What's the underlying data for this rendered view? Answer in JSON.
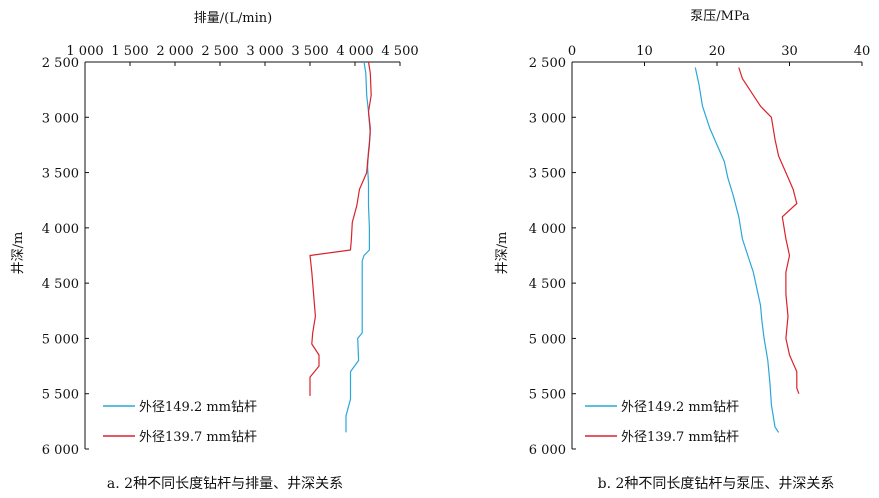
{
  "chart_data": [
    {
      "type": "line",
      "caption": "a. 2种不同长度钻杆与排量、井深关系",
      "xlabel": "排量/(L/min)",
      "ylabel": "井深/m",
      "x_axis_position": "top",
      "y_inverted": true,
      "xlim": [
        1000,
        4500
      ],
      "ylim": [
        2500,
        6000
      ],
      "xticks": [
        1000,
        1500,
        2000,
        2500,
        3000,
        3500,
        4000,
        4500
      ],
      "xtick_labels": [
        "1 000",
        "1 500",
        "2 000",
        "2 500",
        "3 000",
        "3 500",
        "4 000",
        "4 500"
      ],
      "yticks": [
        2500,
        3000,
        3500,
        4000,
        4500,
        5000,
        5500,
        6000
      ],
      "ytick_labels": [
        "2 500",
        "3 000",
        "3 500",
        "4 000",
        "4 500",
        "5 000",
        "5 500",
        "6 000"
      ],
      "legend_position": "bottom-left",
      "series": [
        {
          "name": "外径149.2 mm钻杆",
          "color": "#2aa7d8",
          "points": [
            [
              4100,
              2500
            ],
            [
              4120,
              2600
            ],
            [
              4130,
              2800
            ],
            [
              4150,
              2950
            ],
            [
              4160,
              3050
            ],
            [
              4170,
              3150
            ],
            [
              4150,
              3300
            ],
            [
              4140,
              3450
            ],
            [
              4150,
              3600
            ],
            [
              4150,
              3800
            ],
            [
              4160,
              4000
            ],
            [
              4160,
              4200
            ],
            [
              4100,
              4250
            ],
            [
              4080,
              4300
            ],
            [
              4080,
              4600
            ],
            [
              4080,
              4850
            ],
            [
              4080,
              4950
            ],
            [
              4030,
              5000
            ],
            [
              4040,
              5200
            ],
            [
              3950,
              5300
            ],
            [
              3950,
              5450
            ],
            [
              3950,
              5550
            ],
            [
              3900,
              5700
            ],
            [
              3900,
              5850
            ]
          ]
        },
        {
          "name": "外径139.7 mm钻杆",
          "color": "#d9232a",
          "points": [
            [
              4150,
              2500
            ],
            [
              4170,
              2600
            ],
            [
              4180,
              2800
            ],
            [
              4150,
              2950
            ],
            [
              4170,
              3100
            ],
            [
              4160,
              3250
            ],
            [
              4140,
              3400
            ],
            [
              4130,
              3500
            ],
            [
              4050,
              3650
            ],
            [
              4020,
              3800
            ],
            [
              3970,
              3950
            ],
            [
              3960,
              4100
            ],
            [
              3950,
              4200
            ],
            [
              3500,
              4250
            ],
            [
              3520,
              4400
            ],
            [
              3540,
              4600
            ],
            [
              3560,
              4800
            ],
            [
              3530,
              4950
            ],
            [
              3520,
              5050
            ],
            [
              3600,
              5150
            ],
            [
              3600,
              5250
            ],
            [
              3500,
              5350
            ],
            [
              3500,
              5450
            ],
            [
              3500,
              5520
            ]
          ]
        }
      ]
    },
    {
      "type": "line",
      "caption": "b. 2种不同长度钻杆与泵压、井深关系",
      "xlabel": "泵压/MPa",
      "ylabel": "井深/m",
      "x_axis_position": "top",
      "y_inverted": true,
      "xlim": [
        0,
        40
      ],
      "ylim": [
        2500,
        6000
      ],
      "xticks": [
        0,
        10,
        20,
        30,
        40
      ],
      "xtick_labels": [
        "0",
        "10",
        "20",
        "30",
        "40"
      ],
      "yticks": [
        2500,
        3000,
        3500,
        4000,
        4500,
        5000,
        5500,
        6000
      ],
      "ytick_labels": [
        "2 500",
        "3 000",
        "3 500",
        "4 000",
        "4 500",
        "5 000",
        "5 500",
        "6 000"
      ],
      "legend_position": "bottom-left",
      "series": [
        {
          "name": "外径149.2 mm钻杆",
          "color": "#2aa7d8",
          "points": [
            [
              17,
              2550
            ],
            [
              17.5,
              2700
            ],
            [
              18,
              2900
            ],
            [
              19,
              3100
            ],
            [
              20,
              3250
            ],
            [
              21,
              3400
            ],
            [
              21.5,
              3550
            ],
            [
              22.2,
              3700
            ],
            [
              23,
              3900
            ],
            [
              23.5,
              4100
            ],
            [
              24,
              4200
            ],
            [
              24.5,
              4300
            ],
            [
              25,
              4400
            ],
            [
              25.5,
              4550
            ],
            [
              26,
              4700
            ],
            [
              26.2,
              4850
            ],
            [
              26.5,
              5000
            ],
            [
              27,
              5200
            ],
            [
              27.3,
              5400
            ],
            [
              27.5,
              5600
            ],
            [
              28,
              5800
            ],
            [
              28.5,
              5850
            ]
          ]
        },
        {
          "name": "外径139.7 mm钻杆",
          "color": "#d9232a",
          "points": [
            [
              23,
              2550
            ],
            [
              23.5,
              2650
            ],
            [
              24.5,
              2750
            ],
            [
              26,
              2900
            ],
            [
              27.5,
              3000
            ],
            [
              28,
              3200
            ],
            [
              28.5,
              3350
            ],
            [
              29.5,
              3500
            ],
            [
              30.5,
              3650
            ],
            [
              31,
              3780
            ],
            [
              29,
              3900
            ],
            [
              29.5,
              4100
            ],
            [
              30,
              4250
            ],
            [
              29.5,
              4400
            ],
            [
              29.5,
              4600
            ],
            [
              29.8,
              4800
            ],
            [
              29.5,
              5000
            ],
            [
              30,
              5150
            ],
            [
              31,
              5300
            ],
            [
              31,
              5450
            ],
            [
              31.3,
              5500
            ]
          ]
        }
      ]
    }
  ]
}
